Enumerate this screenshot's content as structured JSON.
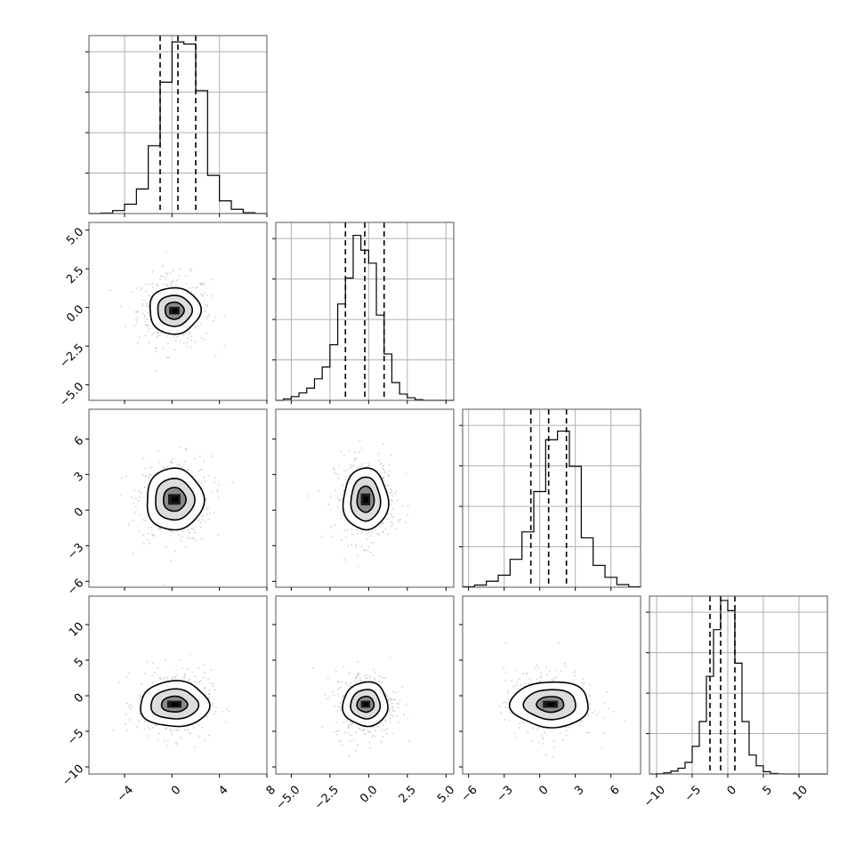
{
  "chart_data": {
    "type": "corner",
    "grid": true,
    "style": {
      "panel_border": "#555555",
      "grid_color": "#b0b0b0",
      "scatter_color": "#9a9a9a",
      "line_color": "#000000"
    },
    "parameters": [
      {
        "range": [
          -7,
          8
        ],
        "ticks": [
          -4,
          0,
          4,
          8
        ],
        "tick_labels": [
          "−4",
          "0",
          "4",
          "8"
        ],
        "hist_ymax": 4200,
        "quantiles": [
          -1.0,
          0.5,
          2.0
        ],
        "hist_edges": [
          -7,
          -6,
          -5,
          -4,
          -3,
          -2,
          -1,
          0,
          1,
          2,
          3,
          4,
          5,
          6,
          7,
          8
        ],
        "hist_counts": [
          0,
          10,
          70,
          220,
          580,
          1600,
          3100,
          4050,
          4000,
          2900,
          900,
          300,
          100,
          20,
          0
        ]
      },
      {
        "range": [
          -6,
          5.5
        ],
        "ticks": [
          -5,
          -2.5,
          0,
          2.5,
          5
        ],
        "tick_labels": [
          "−5.0",
          "−2.5",
          "0.0",
          "2.5",
          "5.0"
        ],
        "hist_ymax": 4800,
        "quantiles": [
          -1.5,
          -0.25,
          1.0
        ],
        "hist_edges": [
          -6,
          -5.5,
          -5,
          -4.5,
          -4,
          -3.5,
          -3,
          -2.5,
          -2,
          -1.5,
          -1,
          -0.5,
          0,
          0.5,
          1,
          1.5,
          2,
          2.5,
          3,
          3.5,
          4,
          4.5,
          5,
          5.5
        ],
        "hist_counts": [
          0,
          40,
          100,
          200,
          330,
          580,
          900,
          1500,
          2600,
          3300,
          4450,
          4050,
          3700,
          2300,
          1250,
          480,
          170,
          70,
          20,
          0,
          0,
          0,
          0
        ]
      },
      {
        "range": [
          -6.5,
          8.5
        ],
        "ticks": [
          -6,
          -3,
          0,
          3,
          6
        ],
        "tick_labels": [
          "−6",
          "−3",
          "0",
          "3",
          "6"
        ],
        "hist_ymax": 4150,
        "quantiles": [
          -0.75,
          0.75,
          2.25
        ],
        "hist_edges": [
          -6.5,
          -5.5,
          -4.5,
          -3.5,
          -2.5,
          -1.5,
          -0.5,
          0.5,
          1.5,
          2.5,
          3.5,
          4.5,
          5.5,
          6.5,
          7.5,
          8.5
        ],
        "hist_counts": [
          10,
          50,
          140,
          280,
          650,
          1290,
          2230,
          3440,
          3640,
          2820,
          1150,
          510,
          230,
          60,
          10
        ]
      },
      {
        "range": [
          -11,
          14
        ],
        "ticks": [
          -10,
          -5,
          0,
          5,
          10
        ],
        "tick_labels": [
          "−10",
          "−5",
          "0",
          "5",
          "10"
        ],
        "hist_ymax": 6100,
        "quantiles": [
          -2.5,
          -1.0,
          1.0
        ],
        "hist_edges": [
          -11,
          -10,
          -9,
          -8,
          -7,
          -6,
          -5,
          -4,
          -3,
          -2,
          -1,
          0,
          1,
          2,
          3,
          4,
          5,
          6,
          7,
          8,
          9,
          10,
          11,
          12,
          13,
          14
        ],
        "hist_counts": [
          0,
          10,
          40,
          100,
          200,
          400,
          950,
          1800,
          3350,
          4950,
          5950,
          5600,
          3800,
          1800,
          650,
          280,
          80,
          20,
          5,
          0,
          0,
          0,
          0,
          0,
          0
        ]
      }
    ],
    "pairs": [
      {
        "row": 1,
        "col": 0,
        "center": [
          0.2,
          -0.2
        ],
        "levels": [
          [
            0.8,
            0.55
          ],
          [
            1.45,
            1.0
          ],
          [
            2.15,
            1.5
          ]
        ]
      },
      {
        "row": 2,
        "col": 0,
        "center": [
          0.2,
          0.9
        ],
        "levels": [
          [
            0.95,
            1.0
          ],
          [
            1.65,
            1.75
          ],
          [
            2.4,
            2.6
          ]
        ]
      },
      {
        "row": 2,
        "col": 1,
        "center": [
          -0.2,
          0.9
        ],
        "levels": [
          [
            0.55,
            1.1
          ],
          [
            0.95,
            1.85
          ],
          [
            1.45,
            2.6
          ]
        ]
      },
      {
        "row": 3,
        "col": 0,
        "center": [
          0.2,
          -1.2
        ],
        "levels": [
          [
            1.1,
            1.1
          ],
          [
            2.0,
            2.1
          ],
          [
            2.9,
            3.2
          ]
        ]
      },
      {
        "row": 3,
        "col": 1,
        "center": [
          -0.2,
          -1.2
        ],
        "levels": [
          [
            0.55,
            1.1
          ],
          [
            0.95,
            2.05
          ],
          [
            1.45,
            3.1
          ]
        ]
      },
      {
        "row": 3,
        "col": 2,
        "center": [
          0.9,
          -1.2
        ],
        "levels": [
          [
            1.15,
            1.1
          ],
          [
            2.2,
            2.1
          ],
          [
            3.3,
            3.2
          ]
        ]
      }
    ],
    "scatter_spread": [
      {
        "row": 1,
        "col": 0,
        "sx": 1.55,
        "sy": 1.15
      },
      {
        "row": 2,
        "col": 0,
        "sx": 1.55,
        "sy": 1.8
      },
      {
        "row": 2,
        "col": 1,
        "sx": 1.0,
        "sy": 1.8
      },
      {
        "row": 3,
        "col": 0,
        "sx": 1.55,
        "sy": 2.4
      },
      {
        "row": 3,
        "col": 1,
        "sx": 1.0,
        "sy": 2.4
      },
      {
        "row": 3,
        "col": 2,
        "sx": 1.9,
        "sy": 2.4
      }
    ]
  }
}
